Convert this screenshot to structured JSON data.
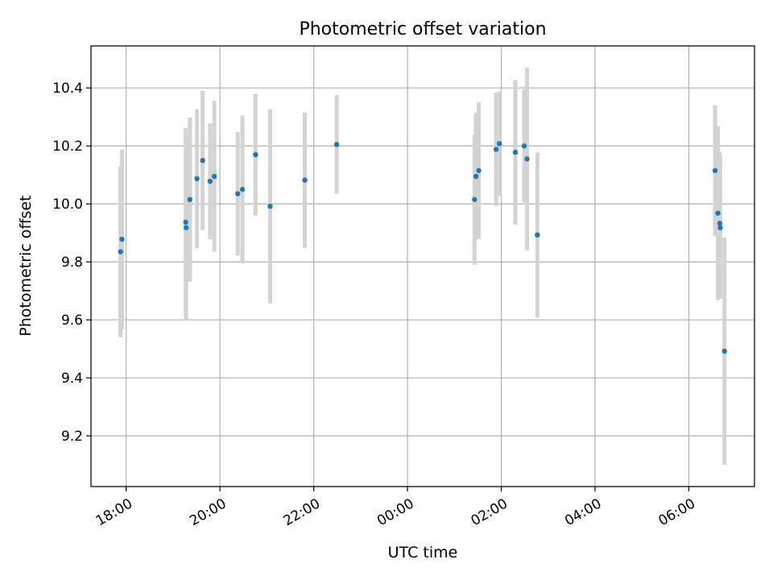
{
  "chart_data": {
    "type": "scatter",
    "title": "Photometric offset variation",
    "xlabel": "UTC time",
    "ylabel": "Photometric offset",
    "x_unit": "hours (UTC, continuing past midnight)",
    "xlim": [
      17.25,
      31.4
    ],
    "ylim": [
      9.025,
      10.545
    ],
    "x_ticks": [
      {
        "value": 18,
        "label": "18:00"
      },
      {
        "value": 20,
        "label": "20:00"
      },
      {
        "value": 22,
        "label": "22:00"
      },
      {
        "value": 24,
        "label": "00:00"
      },
      {
        "value": 26,
        "label": "02:00"
      },
      {
        "value": 28,
        "label": "04:00"
      },
      {
        "value": 30,
        "label": "06:00"
      }
    ],
    "y_ticks": [
      {
        "value": 9.2,
        "label": "9.2"
      },
      {
        "value": 9.4,
        "label": "9.4"
      },
      {
        "value": 9.6,
        "label": "9.6"
      },
      {
        "value": 9.8,
        "label": "9.8"
      },
      {
        "value": 10.0,
        "label": "10.0"
      },
      {
        "value": 10.2,
        "label": "10.2"
      },
      {
        "value": 10.4,
        "label": "10.4"
      }
    ],
    "grid": true,
    "colors": {
      "marker": "#1f77b4",
      "errorbar": "#d3d3d3",
      "grid": "#b0b0b0"
    },
    "points": [
      {
        "x": 17.88,
        "y": 9.835,
        "err": 0.295
      },
      {
        "x": 17.91,
        "y": 9.878,
        "err": 0.31
      },
      {
        "x": 19.27,
        "y": 9.937,
        "err": 0.325
      },
      {
        "x": 19.28,
        "y": 9.918,
        "err": 0.32
      },
      {
        "x": 19.36,
        "y": 10.015,
        "err": 0.283
      },
      {
        "x": 19.51,
        "y": 10.087,
        "err": 0.24
      },
      {
        "x": 19.63,
        "y": 10.15,
        "err": 0.24
      },
      {
        "x": 19.79,
        "y": 10.078,
        "err": 0.2
      },
      {
        "x": 19.88,
        "y": 10.095,
        "err": 0.26
      },
      {
        "x": 20.38,
        "y": 10.035,
        "err": 0.213
      },
      {
        "x": 20.48,
        "y": 10.05,
        "err": 0.255
      },
      {
        "x": 20.76,
        "y": 10.17,
        "err": 0.21
      },
      {
        "x": 21.07,
        "y": 9.992,
        "err": 0.335
      },
      {
        "x": 21.81,
        "y": 10.082,
        "err": 0.233
      },
      {
        "x": 22.49,
        "y": 10.205,
        "err": 0.17
      },
      {
        "x": 25.43,
        "y": 10.015,
        "err": 0.225
      },
      {
        "x": 25.46,
        "y": 10.095,
        "err": 0.22
      },
      {
        "x": 25.52,
        "y": 10.115,
        "err": 0.235
      },
      {
        "x": 25.89,
        "y": 10.188,
        "err": 0.195
      },
      {
        "x": 25.96,
        "y": 10.208,
        "err": 0.18
      },
      {
        "x": 26.3,
        "y": 10.178,
        "err": 0.25
      },
      {
        "x": 26.49,
        "y": 10.2,
        "err": 0.195
      },
      {
        "x": 26.55,
        "y": 10.155,
        "err": 0.315
      },
      {
        "x": 26.77,
        "y": 9.893,
        "err": 0.285
      },
      {
        "x": 30.56,
        "y": 10.115,
        "err": 0.225
      },
      {
        "x": 30.62,
        "y": 9.968,
        "err": 0.3
      },
      {
        "x": 30.66,
        "y": 9.933,
        "err": 0.245
      },
      {
        "x": 30.67,
        "y": 9.918,
        "err": 0.245
      },
      {
        "x": 30.76,
        "y": 9.492,
        "err": 0.392
      }
    ]
  }
}
